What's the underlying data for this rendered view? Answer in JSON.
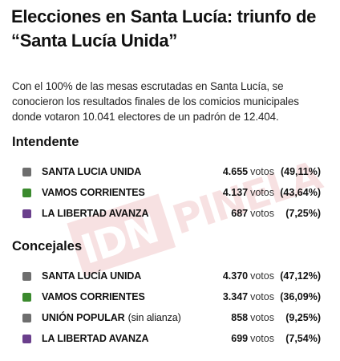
{
  "headline": {
    "line1": "Elecciones en Santa Lucía: triunfo de",
    "line2": "“Santa Lucía Unida”"
  },
  "intro": {
    "line1": "Con el 100% de las mesas escrutadas en Santa Lucía, se",
    "line2": "conocieron los resultados finales de los comicios municipales",
    "line3": "donde votaron 10.041 electores de un padrón de 12.404."
  },
  "colors": {
    "santa_lucia_unida": "#6e6e6e",
    "vamos_corrientes": "#3b8a2e",
    "union_popular": "#6e6e6e",
    "la_libertad_avanza": "#6a3f8c"
  },
  "watermark": {
    "text_a": "IDN",
    "text_b": "PINELA"
  },
  "intendente": {
    "title": "Intendente",
    "rows": [
      {
        "party": "SANTA LUCIA UNIDA",
        "note": "",
        "votes": "4.655",
        "votes_word": "votos",
        "pct": "(49,11%)"
      },
      {
        "party": "VAMOS CORRIENTES",
        "note": "",
        "votes": "4.137",
        "votes_word": "votos",
        "pct": "(43,64%)"
      },
      {
        "party": "LA LIBERTAD AVANZA",
        "note": "",
        "votes": "687",
        "votes_word": "votos",
        "pct": "(7,25%)"
      }
    ]
  },
  "concejales": {
    "title": "Concejales",
    "rows": [
      {
        "party": "SANTA LUCÍA UNIDA",
        "note": "",
        "votes": "4.370",
        "votes_word": "votos",
        "pct": "(47,12%)"
      },
      {
        "party": "VAMOS CORRIENTES",
        "note": "",
        "votes": "3.347",
        "votes_word": "votos",
        "pct": "(36,09%)"
      },
      {
        "party": "UNIÓN POPULAR",
        "note": "(sin alianza)",
        "votes": "858",
        "votes_word": "votos",
        "pct": "(9,25%)"
      },
      {
        "party": "LA LIBERTAD AVANZA",
        "note": "",
        "votes": "699",
        "votes_word": "votos",
        "pct": "(7,54%)"
      }
    ]
  }
}
